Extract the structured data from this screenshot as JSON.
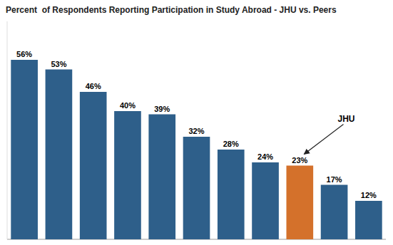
{
  "chart_data": {
    "type": "bar",
    "title": "Percent  of Respondents Reporting Participation in Study Abroad - JHU vs. Peers",
    "categories": [
      null,
      null,
      null,
      null,
      null,
      null,
      null,
      null,
      null,
      null,
      null
    ],
    "values": [
      56,
      53,
      46,
      40,
      39,
      32,
      28,
      24,
      23,
      17,
      12
    ],
    "value_labels": [
      "56%",
      "53%",
      "46%",
      "40%",
      "39%",
      "32%",
      "28%",
      "24%",
      "23%",
      "17%",
      "12%"
    ],
    "colors": [
      "#2E5F8A",
      "#2E5F8A",
      "#2E5F8A",
      "#2E5F8A",
      "#2E5F8A",
      "#2E5F8A",
      "#2E5F8A",
      "#2E5F8A",
      "#D4712B",
      "#2E5F8A",
      "#2E5F8A"
    ],
    "ylim": [
      0,
      68
    ],
    "data_labels": true,
    "tick_labels": false,
    "grid": false,
    "annotations": [
      {
        "text": "JHU",
        "index": 8
      }
    ]
  }
}
